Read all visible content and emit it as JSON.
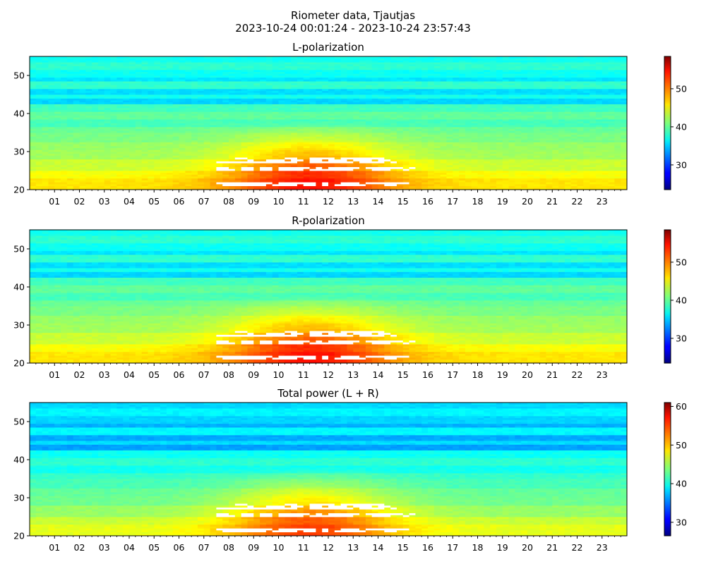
{
  "figure": {
    "title_line1": "Riometer data, Tjautjas",
    "title_line2": "2023-10-24 00:01:24 - 2023-10-24 23:57:43"
  },
  "chart_data": [
    {
      "type": "heatmap",
      "title": "L-polarization",
      "xlabel": "",
      "ylabel": "",
      "xlim": [
        0,
        24
      ],
      "ylim": [
        20,
        55
      ],
      "x_tick_labels": [
        "01",
        "02",
        "03",
        "04",
        "05",
        "06",
        "07",
        "08",
        "09",
        "10",
        "11",
        "12",
        "13",
        "14",
        "15",
        "16",
        "17",
        "18",
        "19",
        "20",
        "21",
        "22",
        "23"
      ],
      "y_ticks": [
        20,
        30,
        40,
        50
      ],
      "colorscale": "jet",
      "colorbar_range": [
        23.5,
        58.5
      ],
      "colorbar_ticks": [
        30,
        40,
        50
      ],
      "grid": false
    },
    {
      "type": "heatmap",
      "title": "R-polarization",
      "xlabel": "",
      "ylabel": "",
      "xlim": [
        0,
        24
      ],
      "ylim": [
        20,
        55
      ],
      "x_tick_labels": [
        "01",
        "02",
        "03",
        "04",
        "05",
        "06",
        "07",
        "08",
        "09",
        "10",
        "11",
        "12",
        "13",
        "14",
        "15",
        "16",
        "17",
        "18",
        "19",
        "20",
        "21",
        "22",
        "23"
      ],
      "y_ticks": [
        20,
        30,
        40,
        50
      ],
      "colorscale": "jet",
      "colorbar_range": [
        23.5,
        58.5
      ],
      "colorbar_ticks": [
        30,
        40,
        50
      ],
      "grid": false
    },
    {
      "type": "heatmap",
      "title": "Total power (L + R)",
      "xlabel": "",
      "ylabel": "",
      "xlim": [
        0,
        24
      ],
      "ylim": [
        20,
        55
      ],
      "x_tick_labels": [
        "01",
        "02",
        "03",
        "04",
        "05",
        "06",
        "07",
        "08",
        "09",
        "10",
        "11",
        "12",
        "13",
        "14",
        "15",
        "16",
        "17",
        "18",
        "19",
        "20",
        "21",
        "22",
        "23"
      ],
      "y_ticks": [
        20,
        30,
        40,
        50
      ],
      "colorscale": "jet",
      "colorbar_range": [
        26.5,
        61
      ],
      "colorbar_ticks": [
        30,
        40,
        50,
        60
      ],
      "grid": false
    }
  ]
}
